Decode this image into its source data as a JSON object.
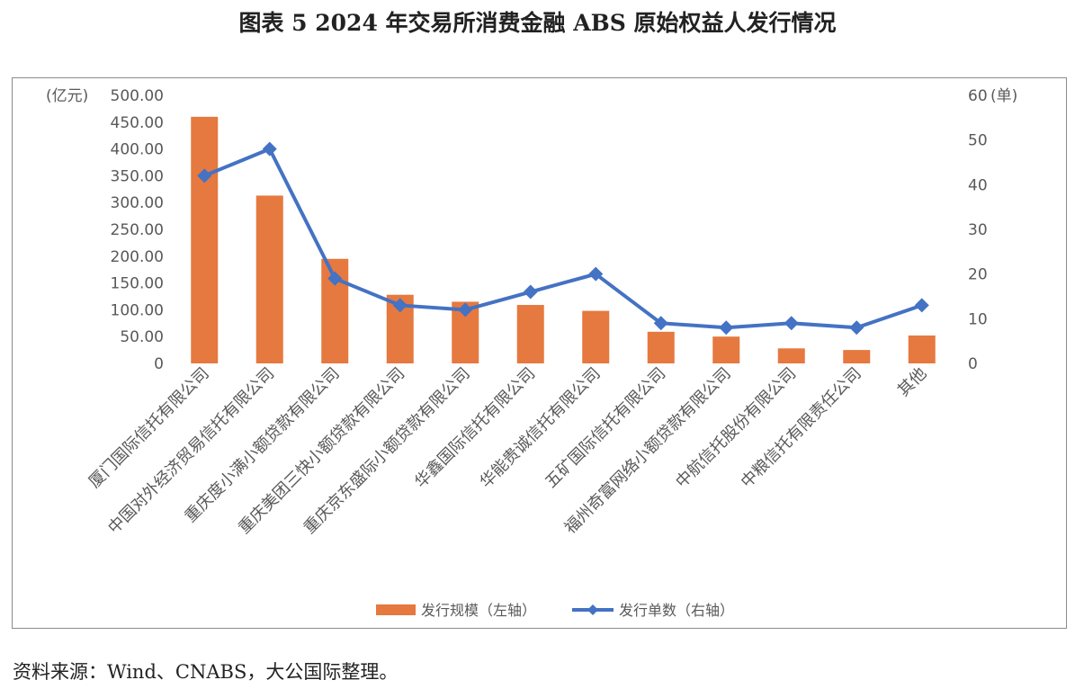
{
  "page": {
    "title": "图表 5 2024 年交易所消费金融 ABS 原始权益人发行情况",
    "source": "资料来源：Wind、CNABS，大公国际整理。"
  },
  "chart_data": {
    "type": "bar+line",
    "title": "",
    "categories": [
      "厦门国际信托有限公司",
      "中国对外经济贸易信托有限公司",
      "重庆度小满小额贷款有限公司",
      "重庆美团三快小额贷款有限公司",
      "重庆京东盛际小额贷款有限公司",
      "华鑫国际信托有限公司",
      "华能贵诚信托有限公司",
      "五矿国际信托有限公司",
      "福州奇富网络小额贷款有限公司",
      "中航信托股份有限公司",
      "中粮信托有限责任公司",
      "其他"
    ],
    "series": [
      {
        "name": "发行规模（左轴）",
        "type": "bar",
        "axis": "left",
        "color": "#E5793F",
        "values": [
          460,
          313,
          195,
          128,
          115,
          109,
          98,
          59,
          50,
          28,
          25,
          52
        ]
      },
      {
        "name": "发行单数（右轴）",
        "type": "line",
        "axis": "right",
        "color": "#4472C4",
        "values": [
          42,
          48,
          19,
          13,
          12,
          16,
          20,
          9,
          8,
          9,
          8,
          13
        ]
      }
    ],
    "y_left": {
      "unit_label": "(亿元)",
      "ylim": [
        0,
        500
      ],
      "ticks": [
        "500.00",
        "450.00",
        "400.00",
        "350.00",
        "300.00",
        "250.00",
        "200.00",
        "150.00",
        "100.00",
        "50.00",
        "0"
      ]
    },
    "y_right": {
      "unit_label": "(单)",
      "ylim": [
        0,
        60
      ],
      "ticks": [
        "60",
        "50",
        "40",
        "30",
        "20",
        "10",
        "0"
      ]
    },
    "grid": false,
    "legend_position": "bottom"
  }
}
